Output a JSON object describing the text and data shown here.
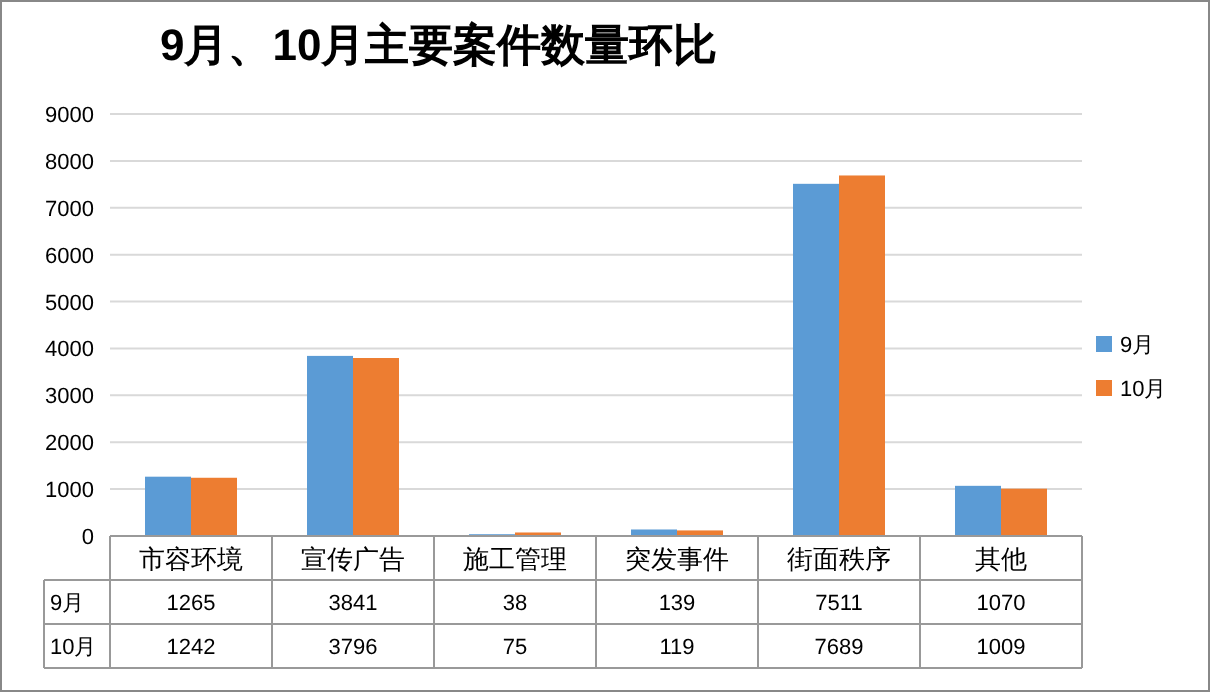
{
  "chart_data": {
    "type": "bar",
    "title": "9月、10月主要案件数量环比",
    "categories": [
      "市容环境",
      "宣传广告",
      "施工管理",
      "突发事件",
      "街面秩序",
      "其他"
    ],
    "series": [
      {
        "name": "9月",
        "color": "#5b9bd5",
        "values": [
          1265,
          3841,
          38,
          139,
          7511,
          1070
        ]
      },
      {
        "name": "10月",
        "color": "#ed7d31",
        "values": [
          1242,
          3796,
          75,
          119,
          7689,
          1009
        ]
      }
    ],
    "ylim": [
      0,
      9000
    ],
    "yticks": [
      0,
      1000,
      2000,
      3000,
      4000,
      5000,
      6000,
      7000,
      8000,
      9000
    ],
    "grid": "y",
    "legend": "right",
    "data_labels": true
  }
}
